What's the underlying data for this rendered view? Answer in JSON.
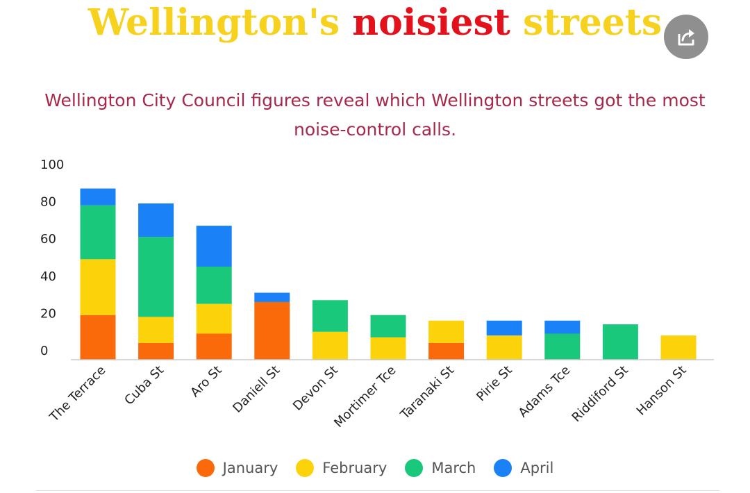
{
  "title": {
    "part1": "Wellington's ",
    "part2": "noisiest",
    "part3": " streets"
  },
  "subtitle": "Wellington City Council figures reveal which Wellington streets got the most noise-control calls.",
  "share_icon": "share-icon",
  "chart_data": {
    "type": "bar",
    "stacked": true,
    "categories": [
      "The Terrace",
      "Cuba St",
      "Aro St",
      "Daniell St",
      "Devon St",
      "Mortimer Tce",
      "Taranaki St",
      "Pirie St",
      "Adams Tce",
      "Riddiford St",
      "Hanson St"
    ],
    "series": [
      {
        "name": "January",
        "color": "#fa6a0a",
        "values": [
          24,
          9,
          14,
          31,
          0,
          0,
          9,
          0,
          0,
          0,
          0
        ]
      },
      {
        "name": "February",
        "color": "#fcd20b",
        "values": [
          30,
          14,
          16,
          0,
          15,
          12,
          12,
          13,
          0,
          0,
          13
        ]
      },
      {
        "name": "March",
        "color": "#19c87a",
        "values": [
          29,
          43,
          20,
          0,
          17,
          12,
          0,
          0,
          14,
          19,
          0
        ]
      },
      {
        "name": "April",
        "color": "#1a81f6",
        "values": [
          9,
          18,
          22,
          5,
          0,
          0,
          0,
          8,
          7,
          0,
          0
        ]
      }
    ],
    "yticks": [
      0,
      20,
      40,
      60,
      80,
      100
    ],
    "ylim": [
      0,
      106
    ],
    "grid": false,
    "legend_position": "bottom-center"
  }
}
